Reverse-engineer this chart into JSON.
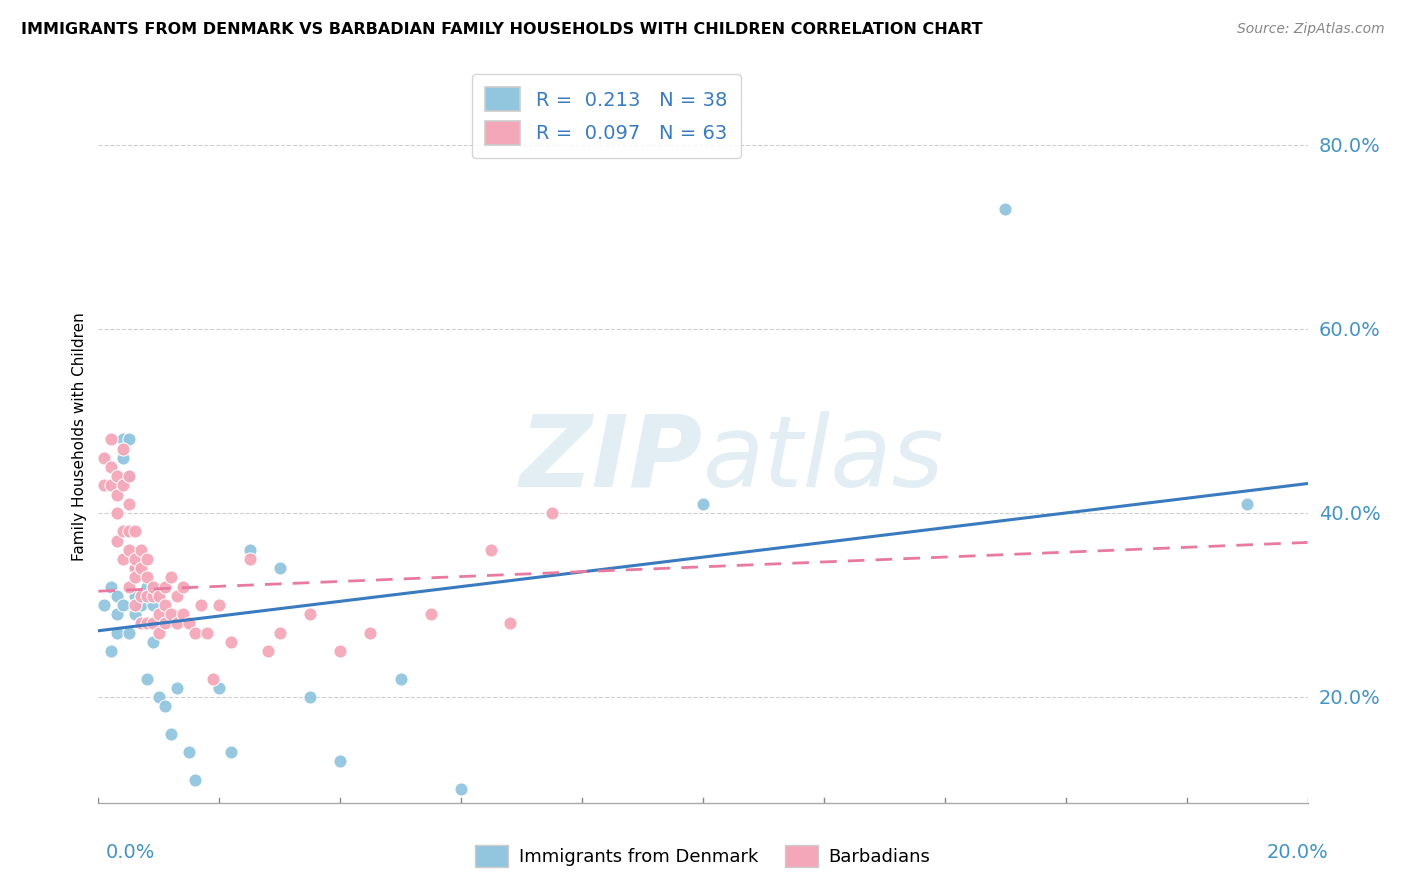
{
  "title": "IMMIGRANTS FROM DENMARK VS BARBADIAN FAMILY HOUSEHOLDS WITH CHILDREN CORRELATION CHART",
  "source": "Source: ZipAtlas.com",
  "ylabel": "Family Households with Children",
  "ytick_values": [
    0.2,
    0.4,
    0.6,
    0.8
  ],
  "xlim": [
    0.0,
    0.2
  ],
  "ylim": [
    0.085,
    0.88
  ],
  "legend1_text": "R =  0.213   N = 38",
  "legend2_text": "R =  0.097   N = 63",
  "legend_label1": "Immigrants from Denmark",
  "legend_label2": "Barbadians",
  "blue_color": "#92c5de",
  "pink_color": "#f4a7b9",
  "blue_line_color": "#3a7bbf",
  "pink_line_color": "#e87a9f",
  "blue_scatter_x": [
    0.001,
    0.002,
    0.002,
    0.003,
    0.003,
    0.003,
    0.004,
    0.004,
    0.004,
    0.005,
    0.005,
    0.005,
    0.006,
    0.006,
    0.006,
    0.007,
    0.007,
    0.008,
    0.008,
    0.009,
    0.009,
    0.01,
    0.011,
    0.012,
    0.013,
    0.015,
    0.016,
    0.02,
    0.022,
    0.025,
    0.03,
    0.035,
    0.04,
    0.05,
    0.06,
    0.1,
    0.15,
    0.19
  ],
  "blue_scatter_y": [
    0.3,
    0.25,
    0.32,
    0.29,
    0.27,
    0.31,
    0.3,
    0.46,
    0.48,
    0.44,
    0.48,
    0.27,
    0.31,
    0.29,
    0.34,
    0.28,
    0.3,
    0.32,
    0.22,
    0.26,
    0.3,
    0.2,
    0.19,
    0.16,
    0.21,
    0.14,
    0.11,
    0.21,
    0.14,
    0.36,
    0.34,
    0.2,
    0.13,
    0.22,
    0.1,
    0.41,
    0.73,
    0.41
  ],
  "pink_scatter_x": [
    0.001,
    0.001,
    0.002,
    0.002,
    0.002,
    0.003,
    0.003,
    0.003,
    0.003,
    0.004,
    0.004,
    0.004,
    0.004,
    0.005,
    0.005,
    0.005,
    0.005,
    0.005,
    0.006,
    0.006,
    0.006,
    0.006,
    0.006,
    0.007,
    0.007,
    0.007,
    0.007,
    0.008,
    0.008,
    0.008,
    0.008,
    0.009,
    0.009,
    0.009,
    0.01,
    0.01,
    0.01,
    0.011,
    0.011,
    0.011,
    0.012,
    0.012,
    0.013,
    0.013,
    0.014,
    0.014,
    0.015,
    0.016,
    0.017,
    0.018,
    0.019,
    0.02,
    0.022,
    0.025,
    0.028,
    0.03,
    0.035,
    0.04,
    0.045,
    0.055,
    0.065,
    0.068,
    0.075
  ],
  "pink_scatter_y": [
    0.43,
    0.46,
    0.43,
    0.45,
    0.48,
    0.42,
    0.44,
    0.4,
    0.37,
    0.43,
    0.47,
    0.35,
    0.38,
    0.41,
    0.38,
    0.44,
    0.36,
    0.32,
    0.34,
    0.38,
    0.35,
    0.3,
    0.33,
    0.31,
    0.34,
    0.36,
    0.28,
    0.31,
    0.33,
    0.35,
    0.28,
    0.31,
    0.28,
    0.32,
    0.29,
    0.31,
    0.27,
    0.3,
    0.28,
    0.32,
    0.29,
    0.33,
    0.28,
    0.31,
    0.29,
    0.32,
    0.28,
    0.27,
    0.3,
    0.27,
    0.22,
    0.3,
    0.26,
    0.35,
    0.25,
    0.27,
    0.29,
    0.25,
    0.27,
    0.29,
    0.36,
    0.28,
    0.4
  ],
  "blue_trend_x": [
    0.0,
    0.2
  ],
  "blue_trend_y": [
    0.272,
    0.432
  ],
  "pink_trend_x": [
    0.0,
    0.2
  ],
  "pink_trend_y": [
    0.315,
    0.368
  ],
  "grid_color": "#d0d0d0",
  "background_color": "#ffffff"
}
